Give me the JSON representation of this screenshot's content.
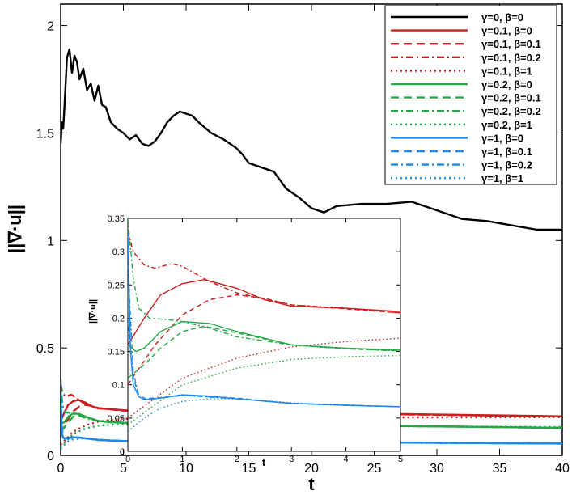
{
  "chart_data": [
    {
      "type": "line",
      "xlabel": "t",
      "ylabel": "||∇·u||",
      "xlim": [
        0,
        40
      ],
      "ylim": [
        0,
        2.1
      ],
      "xticks": [
        0,
        5,
        10,
        15,
        20,
        25,
        30,
        35,
        40
      ],
      "yticks": [
        0,
        0.5,
        1,
        1.5,
        2
      ],
      "xtick_labels": [
        "0",
        "5",
        "10",
        "15",
        "20",
        "25",
        "30",
        "35",
        "40"
      ],
      "ytick_labels": [
        "0",
        "0.5",
        "1",
        "1.5",
        "2"
      ],
      "legend_position": "top-right",
      "series": [
        {
          "name": "γ=0, β=0",
          "color": "#000000",
          "dash": "solid",
          "x": [
            0,
            0.1,
            0.2,
            0.3,
            0.5,
            0.7,
            0.9,
            1.1,
            1.3,
            1.5,
            1.8,
            2.1,
            2.4,
            2.7,
            3.0,
            3.3,
            3.6,
            4.0,
            4.5,
            5.0,
            5.5,
            6.0,
            6.5,
            7.0,
            7.5,
            8.0,
            8.5,
            9.0,
            9.5,
            10.0,
            10.5,
            11.0,
            12.0,
            13.0,
            14.0,
            14.5,
            15.0,
            16.0,
            17.0,
            18.0,
            19.0,
            20.0,
            21.0,
            22.0,
            24.0,
            26.0,
            28.0,
            30.0,
            32.0,
            34.0,
            36.0,
            38.0,
            40.0
          ],
          "y": [
            1.45,
            1.55,
            1.52,
            1.62,
            1.85,
            1.89,
            1.78,
            1.86,
            1.83,
            1.75,
            1.8,
            1.7,
            1.73,
            1.65,
            1.72,
            1.63,
            1.62,
            1.55,
            1.52,
            1.5,
            1.47,
            1.49,
            1.45,
            1.44,
            1.46,
            1.5,
            1.55,
            1.58,
            1.6,
            1.59,
            1.58,
            1.55,
            1.5,
            1.47,
            1.43,
            1.4,
            1.36,
            1.34,
            1.32,
            1.24,
            1.2,
            1.15,
            1.13,
            1.16,
            1.17,
            1.17,
            1.18,
            1.14,
            1.1,
            1.09,
            1.07,
            1.05,
            1.05
          ]
        },
        {
          "name": "γ=0.1, β=0",
          "color": "#cc1f1f",
          "dash": "solid",
          "x": [
            0,
            0.3,
            0.6,
            1.0,
            1.4,
            2.0,
            2.5,
            3.0,
            4.0,
            5.0,
            40.0
          ],
          "y": [
            0.16,
            0.2,
            0.235,
            0.252,
            0.258,
            0.245,
            0.228,
            0.218,
            0.215,
            0.21,
            0.182
          ]
        },
        {
          "name": "γ=0.1, β=0.1",
          "color": "#cc1f1f",
          "dash": "dashed",
          "x": [
            0,
            0.5,
            1.0,
            1.5,
            2.0,
            2.5,
            3.0,
            4.0,
            5.0,
            40.0
          ],
          "y": [
            0.1,
            0.16,
            0.205,
            0.228,
            0.235,
            0.23,
            0.22,
            0.214,
            0.208,
            0.181
          ]
        },
        {
          "name": "γ=0.1, β=0.2",
          "color": "#cc1f1f",
          "dash": "dashdot",
          "x": [
            0,
            0.1,
            0.3,
            0.5,
            0.8,
            1.0,
            1.5,
            2.0,
            3.0,
            4.0,
            5.0,
            40.0
          ],
          "y": [
            0.33,
            0.3,
            0.28,
            0.275,
            0.282,
            0.278,
            0.255,
            0.238,
            0.22,
            0.215,
            0.208,
            0.181
          ]
        },
        {
          "name": "γ=0.1, β=1",
          "color": "#cc1f1f",
          "dash": "dotted",
          "x": [
            0,
            0.5,
            1.0,
            2.0,
            3.0,
            4.0,
            5.0,
            10.0,
            40.0
          ],
          "y": [
            0.05,
            0.08,
            0.11,
            0.14,
            0.157,
            0.165,
            0.17,
            0.175,
            0.178
          ]
        },
        {
          "name": "γ=0.2, β=0",
          "color": "#25a845",
          "dash": "solid",
          "x": [
            0,
            0.15,
            0.3,
            0.6,
            1.0,
            1.5,
            2.0,
            3.0,
            4.0,
            5.0,
            40.0
          ],
          "y": [
            0.16,
            0.15,
            0.155,
            0.18,
            0.195,
            0.192,
            0.18,
            0.16,
            0.155,
            0.152,
            0.128
          ]
        },
        {
          "name": "γ=0.2, β=0.1",
          "color": "#25a845",
          "dash": "dashed",
          "x": [
            0,
            0.3,
            0.6,
            1.0,
            1.4,
            2.0,
            3.0,
            4.0,
            5.0,
            40.0
          ],
          "y": [
            0.11,
            0.13,
            0.155,
            0.18,
            0.188,
            0.178,
            0.16,
            0.154,
            0.151,
            0.128
          ]
        },
        {
          "name": "γ=0.2, β=0.2",
          "color": "#25a845",
          "dash": "dashdot",
          "x": [
            0,
            0.1,
            0.2,
            0.4,
            0.7,
            1.0,
            1.5,
            2.0,
            3.0,
            4.0,
            5.0,
            40.0
          ],
          "y": [
            0.35,
            0.26,
            0.215,
            0.2,
            0.198,
            0.195,
            0.185,
            0.172,
            0.16,
            0.154,
            0.151,
            0.128
          ]
        },
        {
          "name": "γ=0.2, β=1",
          "color": "#25a845",
          "dash": "dotted",
          "x": [
            0,
            0.5,
            1.0,
            2.0,
            3.0,
            4.0,
            5.0,
            10.0,
            40.0
          ],
          "y": [
            0.04,
            0.07,
            0.1,
            0.125,
            0.138,
            0.142,
            0.144,
            0.14,
            0.132
          ]
        },
        {
          "name": "γ=1, β=0",
          "color": "#1e88e5",
          "dash": "solid",
          "x": [
            0,
            0.05,
            0.1,
            0.2,
            0.3,
            0.5,
            1.0,
            1.5,
            2.0,
            3.0,
            4.0,
            5.0,
            40.0
          ],
          "y": [
            0.33,
            0.15,
            0.1,
            0.082,
            0.078,
            0.079,
            0.085,
            0.083,
            0.079,
            0.072,
            0.069,
            0.067,
            0.055
          ]
        },
        {
          "name": "γ=1, β=0.1",
          "color": "#1e88e5",
          "dash": "dashed",
          "x": [
            0,
            0.1,
            0.2,
            0.3,
            0.5,
            1.0,
            2.0,
            3.0,
            5.0,
            40.0
          ],
          "y": [
            0.2,
            0.11,
            0.085,
            0.08,
            0.08,
            0.084,
            0.08,
            0.072,
            0.067,
            0.055
          ]
        },
        {
          "name": "γ=1, β=0.2",
          "color": "#1e88e5",
          "dash": "dashdot",
          "x": [
            0,
            0.1,
            0.2,
            0.3,
            0.5,
            1.0,
            2.0,
            3.0,
            5.0,
            40.0
          ],
          "y": [
            0.28,
            0.12,
            0.082,
            0.078,
            0.079,
            0.084,
            0.079,
            0.072,
            0.067,
            0.055
          ]
        },
        {
          "name": "γ=1, β=1",
          "color": "#1e88e5",
          "dash": "dotted",
          "x": [
            0,
            0.3,
            0.6,
            1.0,
            1.5,
            2.0,
            3.0,
            4.0,
            5.0,
            40.0
          ],
          "y": [
            0.03,
            0.05,
            0.065,
            0.075,
            0.079,
            0.079,
            0.073,
            0.069,
            0.067,
            0.055
          ]
        }
      ]
    },
    {
      "type": "line",
      "xlabel": "t",
      "ylabel": "||∇·u||",
      "xlim": [
        0,
        5
      ],
      "ylim": [
        0,
        0.35
      ],
      "xticks": [
        0,
        1,
        2,
        3,
        4,
        5
      ],
      "yticks": [
        0,
        0.05,
        0.1,
        0.15,
        0.2,
        0.25,
        0.3,
        0.35
      ],
      "xtick_labels": [
        "0",
        "1",
        "2",
        "3",
        "4",
        "5"
      ],
      "ytick_labels": [
        "0",
        "0.05",
        "0.1",
        "0.15",
        "0.2",
        "0.25",
        "0.3",
        "0.35"
      ],
      "note_series": "same series as main chart, zoomed to t in [0,5]"
    }
  ]
}
